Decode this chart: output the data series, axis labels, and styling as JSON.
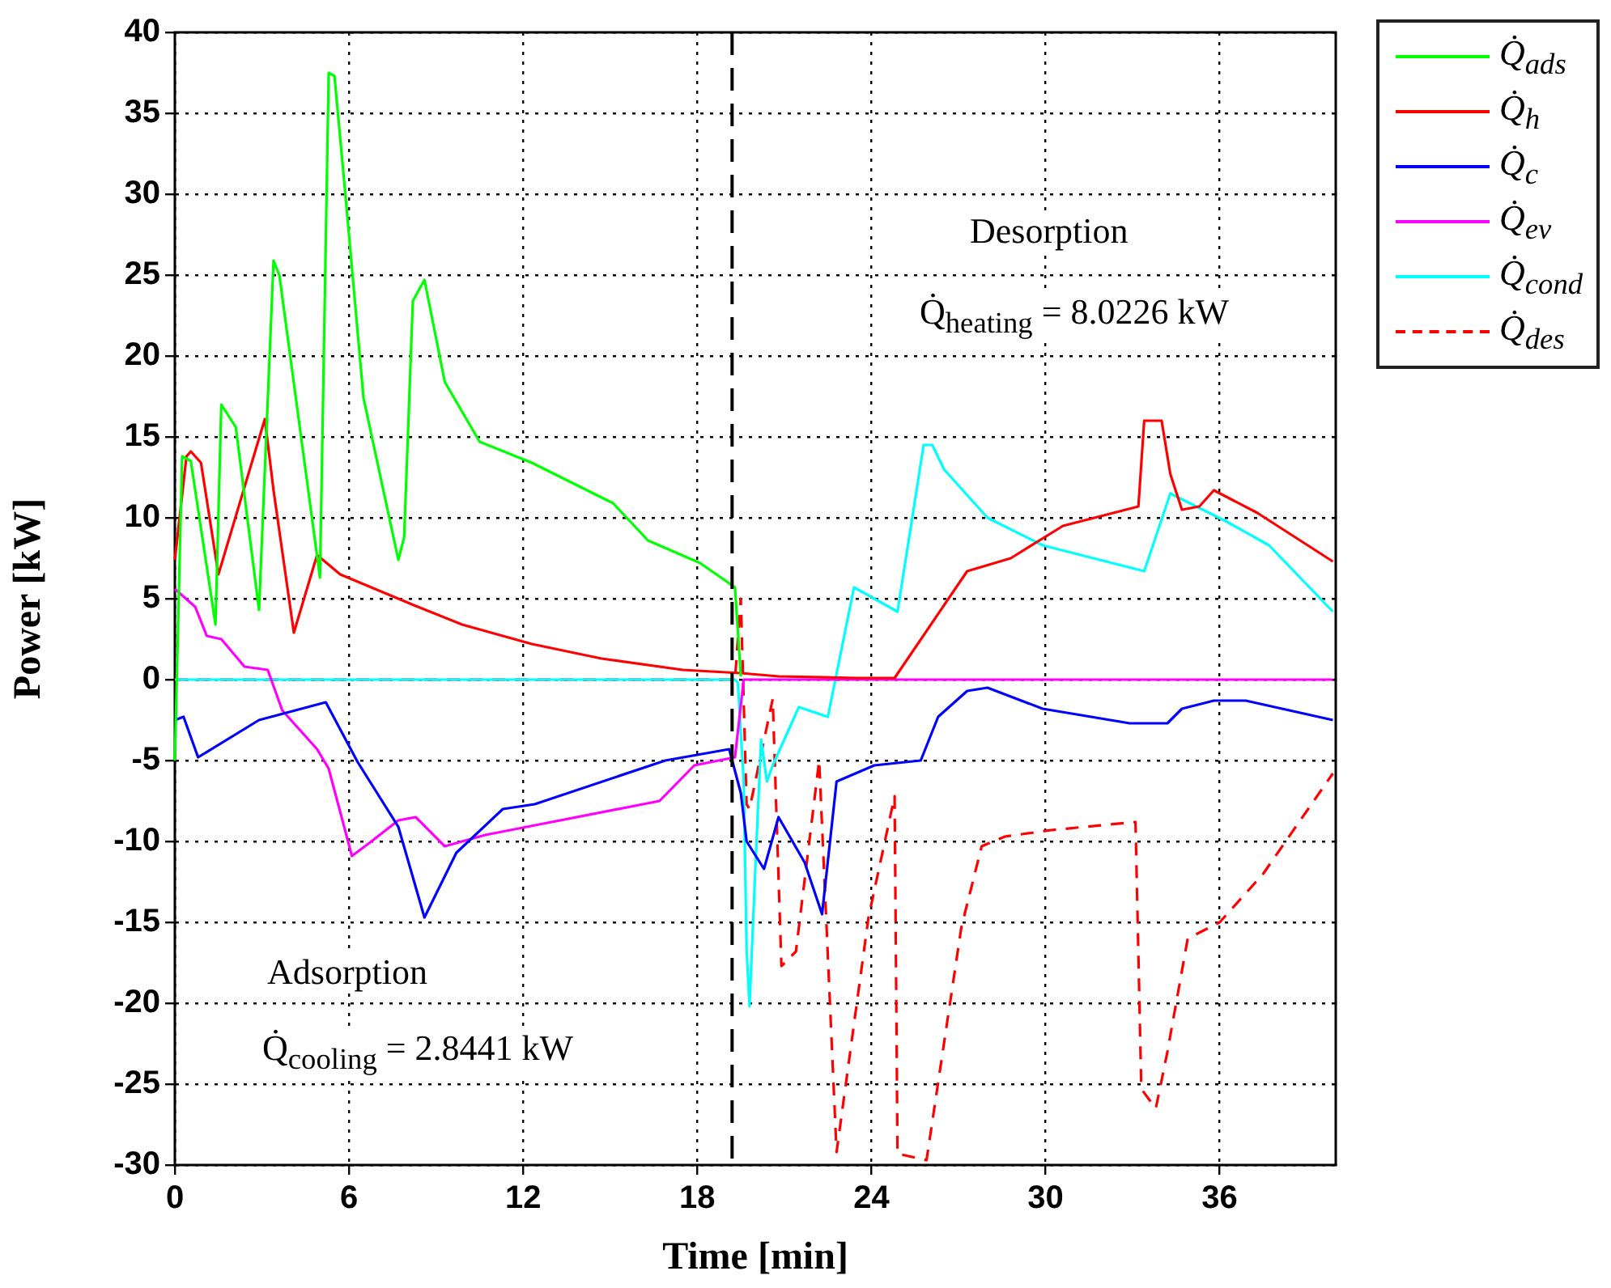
{
  "chart_data": {
    "type": "line",
    "xlabel": "Time [min]",
    "ylabel": "Power [kW]",
    "xlim": [
      0,
      40
    ],
    "xticks": [
      0,
      6,
      12,
      18,
      24,
      30,
      36
    ],
    "ylim": [
      -30,
      40
    ],
    "yticks": [
      -30,
      -25,
      -20,
      -15,
      -10,
      -5,
      0,
      5,
      10,
      15,
      20,
      25,
      30,
      35,
      40
    ],
    "grid": true,
    "legend": "top right",
    "marker": "none",
    "series": [
      {
        "name": "Q̇$_{ads}$",
        "color": "#00ff00",
        "x": [
          0,
          0.25,
          0.55,
          1.4,
          1.6,
          2.1,
          2.9,
          3.4,
          3.6,
          5.0,
          5.3,
          5.5,
          5.9,
          6.5,
          7.7,
          7.9,
          8.2,
          8.6,
          9.3,
          10.5,
          12.3,
          15.1,
          16.3,
          18.1,
          19.3,
          19.5
        ],
        "values": [
          -5,
          13.8,
          13.5,
          3.4,
          17,
          15.6,
          4.3,
          25.9,
          25,
          6.3,
          37.5,
          37.3,
          29.5,
          17.4,
          7.4,
          8.8,
          23.4,
          24.7,
          18.4,
          14.7,
          13.4,
          10.9,
          8.6,
          7.2,
          5.7,
          0.2
        ]
      },
      {
        "name": "Q̇$_{h}$",
        "color": "#ff0000",
        "x": [
          0,
          0.4,
          0.55,
          0.9,
          1.5,
          2.3,
          3.1,
          3.4,
          4.1,
          4.9,
          5.7,
          8.1,
          9.9,
          12.3,
          14.7,
          17.5,
          19.5,
          20.8,
          23.5,
          24.8,
          27.3,
          28.8,
          30.6,
          33.2,
          33.4,
          34.0,
          34.3,
          34.7,
          35.3,
          35.8,
          37.3,
          39.9
        ],
        "values": [
          7.4,
          13.8,
          14.1,
          13.4,
          6.5,
          11.3,
          16.1,
          11.7,
          2.9,
          7.7,
          6.5,
          4.7,
          3.4,
          2.2,
          1.3,
          0.6,
          0.4,
          0.2,
          0.1,
          0.1,
          6.7,
          7.5,
          9.5,
          10.7,
          16,
          16,
          12.7,
          10.5,
          10.7,
          11.7,
          10.3,
          7.3
        ]
      },
      {
        "name": "Q̇$_{c}$",
        "color": "#0000ff",
        "x": [
          0,
          0.3,
          0.8,
          2.9,
          5.2,
          6.3,
          7.7,
          8.6,
          9.7,
          11.3,
          12.4,
          16.9,
          19.1,
          19.5,
          19.7,
          20.3,
          20.8,
          21.7,
          22.3,
          22.8,
          24.1,
          25.7,
          26.3,
          27.3,
          28,
          29.9,
          32.9,
          34.2,
          34.7,
          35.8,
          36.9,
          39.9
        ],
        "values": [
          -2.5,
          -2.3,
          -4.8,
          -2.5,
          -1.4,
          -5.1,
          -9.1,
          -14.7,
          -10.7,
          -8,
          -7.7,
          -5,
          -4.3,
          -7,
          -10,
          -11.7,
          -8.5,
          -11.3,
          -14.5,
          -6.3,
          -5.3,
          -5,
          -2.3,
          -0.7,
          -0.5,
          -1.8,
          -2.7,
          -2.7,
          -1.8,
          -1.3,
          -1.3,
          -2.5
        ]
      },
      {
        "name": "Q̇$_{ev}$",
        "color": "#ff00ff",
        "x": [
          0,
          0.7,
          1.1,
          1.6,
          2.4,
          3.2,
          3.7,
          4.9,
          5.3,
          6.1,
          6.7,
          7.7,
          8.3,
          9.3,
          10.7,
          12.7,
          16.7,
          17.9,
          19.3,
          19.6,
          39.9
        ],
        "values": [
          5.6,
          4.5,
          2.7,
          2.5,
          0.8,
          0.6,
          -1.9,
          -4.3,
          -5.5,
          -10.9,
          -10.1,
          -8.7,
          -8.5,
          -10.3,
          -9.6,
          -8.9,
          -7.5,
          -5.3,
          -4.8,
          0,
          0
        ]
      },
      {
        "name": "Q̇$_{cond}$",
        "color": "#00ffff",
        "x": [
          0,
          19.3,
          19.4,
          19.6,
          19.7,
          19.8,
          20,
          20.2,
          20.4,
          20.6,
          21.5,
          22.5,
          23.4,
          24.9,
          25.8,
          26.1,
          26.5,
          28,
          29.9,
          33.4,
          34.3,
          36.2,
          37.7,
          39.9
        ],
        "values": [
          0,
          0,
          -0.2,
          -6.3,
          -16.7,
          -20.2,
          -11.7,
          -3.7,
          -6.3,
          -5.3,
          -1.7,
          -2.3,
          5.7,
          4.2,
          14.5,
          14.5,
          13,
          10,
          8.3,
          6.7,
          11.5,
          9.8,
          8.3,
          4.2
        ]
      },
      {
        "name": "Q̇$_{des}$",
        "color": "#ff0000",
        "line_style": "dashed",
        "x": [
          0,
          19.3,
          19.5,
          19.7,
          19.8,
          20.6,
          20.9,
          21.4,
          22.2,
          22.8,
          23.9,
          24.8,
          24.9,
          25.9,
          27.1,
          27.8,
          28.6,
          30.2,
          33.1,
          33.3,
          33.8,
          34.2,
          34.9,
          36,
          37.5,
          39.9
        ],
        "values": [
          0,
          0,
          5,
          -7.7,
          -8,
          -1.2,
          -17.7,
          -16.8,
          -5,
          -29.2,
          -14.7,
          -7.2,
          -29.3,
          -29.7,
          -15.3,
          -10.3,
          -9.7,
          -9.3,
          -8.8,
          -25.3,
          -26.5,
          -23,
          -16,
          -15,
          -12,
          -5.8
        ]
      }
    ],
    "ref_lines": [
      {
        "axis": "x",
        "value": 19.2,
        "color": "#000000",
        "line_style": "dashed"
      }
    ],
    "annotations": [
      "Desorption",
      "Q̇$_{heating}$ = 8.0226 kW",
      "Adsorption",
      "Q̇$_{cooling}$ = 2.8441 kW"
    ]
  }
}
